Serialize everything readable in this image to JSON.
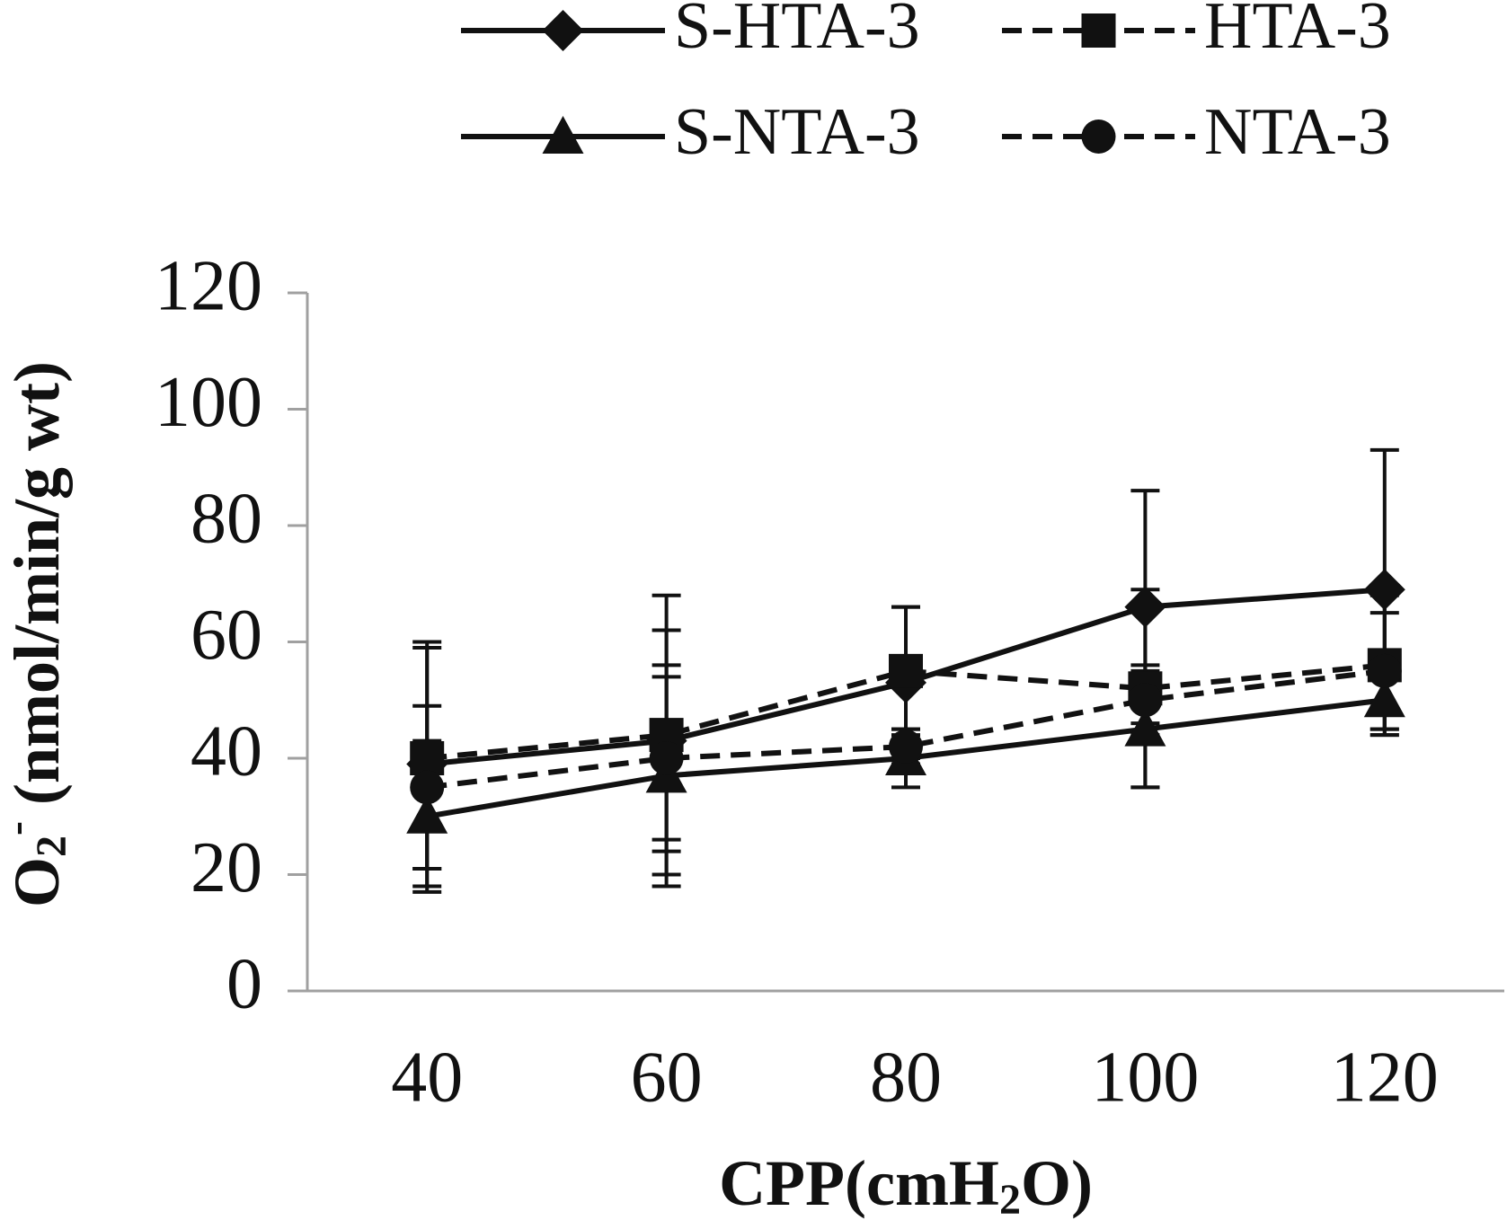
{
  "chart_data": {
    "type": "line",
    "categories": [
      "40",
      "60",
      "80",
      "100",
      "120"
    ],
    "xlabel_parts": [
      "CPP(cmH",
      "2",
      "O)"
    ],
    "ylabel_parts": [
      "O",
      "2",
      "-",
      " (nmol/min/g wt)"
    ],
    "ylim": [
      0,
      120
    ],
    "yticks": [
      0,
      20,
      40,
      60,
      80,
      100,
      120
    ],
    "series": [
      {
        "name": "S-HTA-3",
        "color": "#111111",
        "dashed": false,
        "marker": "diamond",
        "values": [
          39,
          43,
          53,
          66,
          69
        ],
        "errors": [
          21,
          25,
          13,
          20,
          24
        ]
      },
      {
        "name": "HTA-3",
        "color": "#111111",
        "dashed": true,
        "marker": "square",
        "values": [
          40,
          44,
          55,
          52,
          56
        ],
        "errors": [
          19,
          18,
          11,
          17,
          12
        ]
      },
      {
        "name": "S-NTA-3",
        "color": "#111111",
        "dashed": false,
        "marker": "triangle",
        "values": [
          30,
          37,
          40,
          45,
          50
        ],
        "errors": [
          13,
          17,
          5,
          10,
          6
        ]
      },
      {
        "name": "NTA-3",
        "color": "#111111",
        "dashed": true,
        "marker": "circle",
        "values": [
          35,
          40,
          42,
          50,
          55
        ],
        "errors": [
          14,
          16,
          3,
          6,
          10
        ]
      }
    ]
  }
}
